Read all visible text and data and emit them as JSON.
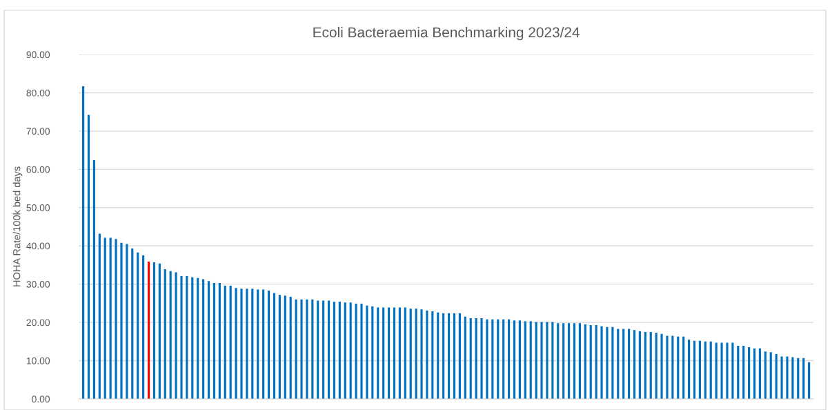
{
  "chart_data": {
    "type": "bar",
    "title": "Ecoli Bacteraemia Benchmarking 2023/24",
    "ylabel": "HOHA Rate/100k bed days",
    "categories": [
      null,
      null,
      null,
      null,
      null,
      null,
      null,
      null,
      null,
      null,
      null,
      null,
      null,
      null,
      null,
      null,
      null,
      null,
      null,
      null,
      null,
      null,
      null,
      null,
      null,
      null,
      null,
      null,
      null,
      null,
      null,
      null,
      null,
      null,
      null,
      null,
      null,
      null,
      null,
      null,
      null,
      null,
      null,
      null,
      null,
      null,
      null,
      null,
      null,
      null,
      null,
      null,
      null,
      null,
      null,
      null,
      null,
      null,
      null,
      null,
      null,
      null,
      null,
      null,
      null,
      null,
      null,
      null,
      null,
      null,
      null,
      null,
      null,
      null,
      null,
      null,
      null,
      null,
      null,
      null,
      null,
      null,
      null,
      null,
      null,
      null,
      null,
      null,
      null,
      null,
      null,
      null,
      null,
      null,
      null,
      null,
      null,
      null,
      null,
      null,
      null,
      null,
      null,
      null,
      null,
      null,
      null,
      null,
      null,
      null,
      null,
      null,
      null,
      null,
      null,
      null,
      null,
      null,
      null,
      null,
      null,
      null,
      null,
      null,
      null,
      null,
      null,
      null,
      null,
      null,
      null,
      null,
      null,
      null
    ],
    "values": [
      81.7,
      74.2,
      62.4,
      43.2,
      42.1,
      42.1,
      41.8,
      40.8,
      40.5,
      39.3,
      38.3,
      37.5,
      35.9,
      35.7,
      35.4,
      33.9,
      33.4,
      33.1,
      32.1,
      32.1,
      31.8,
      31.6,
      31.3,
      30.8,
      30.3,
      30.3,
      29.6,
      29.6,
      29.0,
      28.8,
      28.8,
      28.8,
      28.6,
      28.6,
      28.3,
      27.7,
      27.2,
      27.0,
      26.7,
      26.0,
      26.0,
      26.0,
      26.0,
      25.7,
      25.7,
      25.7,
      25.4,
      25.4,
      25.2,
      25.2,
      24.9,
      24.9,
      24.4,
      24.2,
      23.9,
      23.9,
      23.9,
      23.9,
      23.9,
      23.9,
      23.6,
      23.6,
      23.4,
      23.1,
      22.9,
      22.6,
      22.4,
      22.4,
      22.4,
      22.4,
      21.5,
      21.1,
      21.1,
      21.1,
      20.8,
      20.8,
      20.8,
      20.8,
      20.8,
      20.5,
      20.5,
      20.3,
      20.3,
      20.1,
      20.1,
      20.1,
      20.1,
      19.8,
      19.8,
      19.8,
      19.8,
      19.8,
      19.5,
      19.3,
      19.3,
      19.0,
      18.8,
      18.8,
      18.3,
      18.3,
      18.3,
      18.0,
      17.7,
      17.5,
      17.5,
      17.3,
      17.0,
      16.5,
      16.5,
      16.3,
      16.3,
      15.5,
      15.2,
      15.2,
      15.0,
      15.0,
      14.7,
      14.7,
      14.7,
      14.7,
      13.9,
      13.9,
      13.5,
      13.2,
      13.2,
      12.4,
      12.2,
      11.7,
      11.1,
      11.1,
      10.9,
      10.7,
      10.7,
      9.6
    ],
    "colors": [
      "#0070c0",
      "#0070c0",
      "#0070c0",
      "#0070c0",
      "#0070c0",
      "#0070c0",
      "#0070c0",
      "#0070c0",
      "#0070c0",
      "#0070c0",
      "#0070c0",
      "#0070c0",
      "#ff0000",
      "#0070c0",
      "#0070c0",
      "#0070c0",
      "#0070c0",
      "#0070c0",
      "#0070c0",
      "#0070c0",
      "#0070c0",
      "#0070c0",
      "#0070c0",
      "#0070c0",
      "#0070c0",
      "#0070c0",
      "#0070c0",
      "#0070c0",
      "#0070c0",
      "#0070c0",
      "#0070c0",
      "#0070c0",
      "#0070c0",
      "#0070c0",
      "#0070c0",
      "#0070c0",
      "#0070c0",
      "#0070c0",
      "#0070c0",
      "#0070c0",
      "#0070c0",
      "#0070c0",
      "#0070c0",
      "#0070c0",
      "#0070c0",
      "#0070c0",
      "#0070c0",
      "#0070c0",
      "#0070c0",
      "#0070c0",
      "#0070c0",
      "#0070c0",
      "#0070c0",
      "#0070c0",
      "#0070c0",
      "#0070c0",
      "#0070c0",
      "#0070c0",
      "#0070c0",
      "#0070c0",
      "#0070c0",
      "#0070c0",
      "#0070c0",
      "#0070c0",
      "#0070c0",
      "#0070c0",
      "#0070c0",
      "#0070c0",
      "#0070c0",
      "#0070c0",
      "#0070c0",
      "#0070c0",
      "#0070c0",
      "#0070c0",
      "#0070c0",
      "#0070c0",
      "#0070c0",
      "#0070c0",
      "#0070c0",
      "#0070c0",
      "#0070c0",
      "#0070c0",
      "#0070c0",
      "#0070c0",
      "#0070c0",
      "#0070c0",
      "#0070c0",
      "#0070c0",
      "#0070c0",
      "#0070c0",
      "#0070c0",
      "#0070c0",
      "#0070c0",
      "#0070c0",
      "#0070c0",
      "#0070c0",
      "#0070c0",
      "#0070c0",
      "#0070c0",
      "#0070c0",
      "#0070c0",
      "#0070c0",
      "#0070c0",
      "#0070c0",
      "#0070c0",
      "#0070c0",
      "#0070c0",
      "#0070c0",
      "#0070c0",
      "#0070c0",
      "#0070c0",
      "#0070c0",
      "#0070c0",
      "#0070c0",
      "#0070c0",
      "#0070c0",
      "#0070c0",
      "#0070c0",
      "#0070c0",
      "#0070c0",
      "#0070c0",
      "#0070c0",
      "#0070c0",
      "#0070c0",
      "#0070c0",
      "#0070c0",
      "#0070c0",
      "#0070c0",
      "#0070c0",
      "#0070c0",
      "#0070c0",
      "#0070c0",
      "#0070c0",
      "#0070c0"
    ],
    "ylim": [
      0,
      90
    ],
    "yticks": [
      {
        "value": 0,
        "label": "0.00"
      },
      {
        "value": 10,
        "label": "10.00"
      },
      {
        "value": 20,
        "label": "20.00"
      },
      {
        "value": 30,
        "label": "30.00"
      },
      {
        "value": 40,
        "label": "40.00"
      },
      {
        "value": 50,
        "label": "50.00"
      },
      {
        "value": 60,
        "label": "60.00"
      },
      {
        "value": 70,
        "label": "70.00"
      },
      {
        "value": 80,
        "label": "80.00"
      },
      {
        "value": 90,
        "label": "90.00"
      }
    ],
    "grid": "y",
    "tick_labels": "y"
  }
}
